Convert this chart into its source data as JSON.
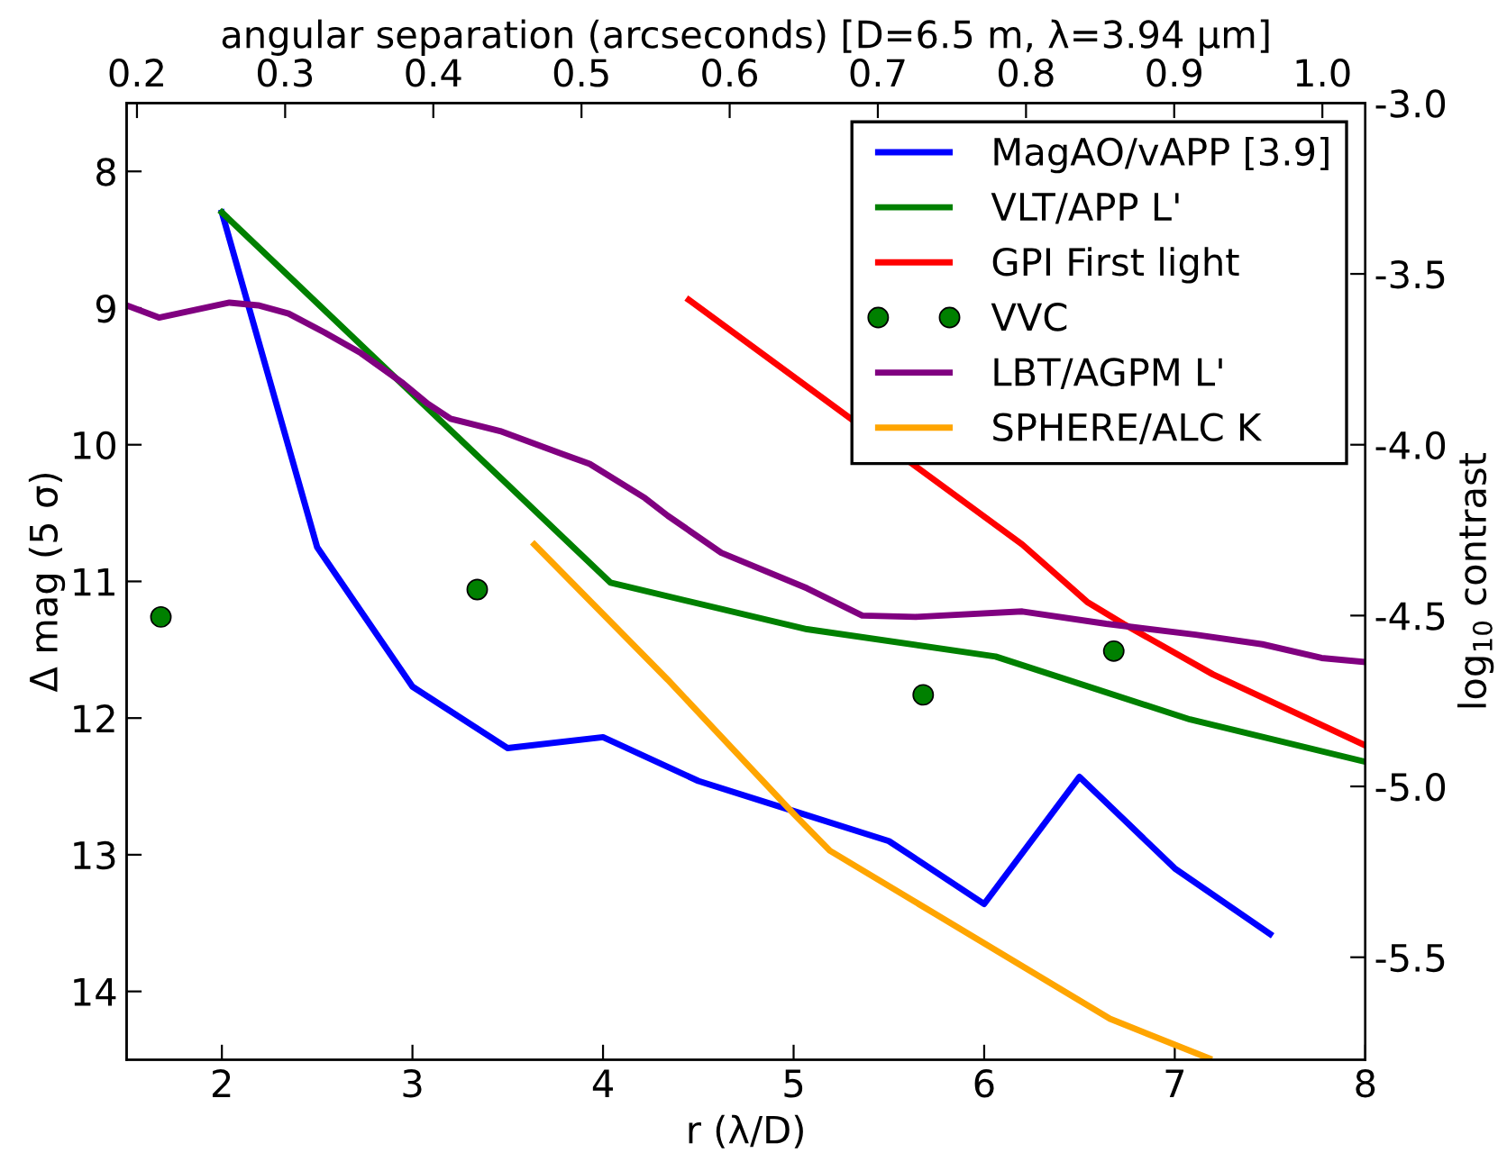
{
  "chart_data": {
    "type": "line",
    "xlabel": "r (λ/D)",
    "ylabel": "Δ mag (5 σ)",
    "x2label": "angular separation (arcseconds) [D=6.5 m, λ=3.94 μm]",
    "y2label": "log$_{10}$ contrast",
    "xlim": [
      1.5,
      8
    ],
    "xticks": [
      2,
      3,
      4,
      5,
      6,
      7,
      8
    ],
    "ylim": [
      14.5,
      7.5
    ],
    "yticks": [
      8,
      9,
      10,
      11,
      12,
      13,
      14
    ],
    "x2lim": [
      0.193,
      1.029
    ],
    "x2ticks": [
      0.2,
      0.3,
      0.4,
      0.5,
      0.6,
      0.7,
      0.8,
      0.9,
      {
        "value": 1,
        "label": "1.0"
      }
    ],
    "y2lim": [
      -5.8,
      -3.0
    ],
    "y2ticks": [
      -5.5,
      {
        "value": -5,
        "label": "-5.0"
      },
      -4.5,
      {
        "value": -4,
        "label": "-4.0"
      },
      -3.5,
      {
        "value": -3,
        "label": "-3.0"
      }
    ],
    "grid": false,
    "legend": "top right",
    "series": [
      {
        "name": "MagAO/vAPP [3.9]",
        "color": "#0000ff",
        "x": [
          2,
          2.5,
          3,
          3.5,
          4,
          4.5,
          5,
          5.5,
          6,
          6.5,
          7,
          7.5
        ],
        "values": [
          8.3,
          10.75,
          11.77,
          12.22,
          12.14,
          12.46,
          12.68,
          12.9,
          13.36,
          12.43,
          13.1,
          13.58
        ]
      },
      {
        "name": "VLT/APP L'",
        "color": "#008000",
        "x": [
          2,
          4.04,
          5.07,
          6.06,
          7.08,
          8
        ],
        "values": [
          8.3,
          11.01,
          11.35,
          11.55,
          12.01,
          12.32
        ]
      },
      {
        "name": "GPI First light",
        "color": "#ff0000",
        "x": [
          4.45,
          6.2,
          6.54,
          6.73,
          7.2,
          8
        ],
        "values": [
          8.94,
          10.73,
          11.15,
          11.31,
          11.68,
          12.2
        ]
      },
      {
        "name": "VVC",
        "type": "scatter",
        "marker": "circle",
        "color": "#008000",
        "x": [
          1.68,
          3.34,
          5.68,
          6.68
        ],
        "values": [
          11.26,
          11.06,
          11.83,
          11.51
        ]
      },
      {
        "name": "LBT/AGPM L'",
        "color": "#800080",
        "x": [
          1.5,
          1.67,
          2.04,
          2.19,
          2.35,
          2.54,
          2.73,
          2.95,
          3.08,
          3.2,
          3.46,
          3.77,
          3.93,
          4.22,
          4.34,
          4.62,
          5.07,
          5.36,
          5.64,
          6.2,
          6.64,
          7.11,
          7.46,
          7.77,
          8
        ],
        "values": [
          8.98,
          9.07,
          8.96,
          8.98,
          9.04,
          9.18,
          9.33,
          9.55,
          9.7,
          9.81,
          9.9,
          10.06,
          10.14,
          10.39,
          10.52,
          10.79,
          11.05,
          11.25,
          11.26,
          11.22,
          11.31,
          11.39,
          11.46,
          11.56,
          11.59
        ]
      },
      {
        "name": "SPHERE/ALC K",
        "color": "#ffa500",
        "x": [
          3.64,
          4.34,
          5.0,
          5.19,
          6.66,
          7.18
        ],
        "values": [
          10.73,
          11.72,
          12.7,
          12.97,
          14.2,
          14.49
        ]
      }
    ]
  }
}
